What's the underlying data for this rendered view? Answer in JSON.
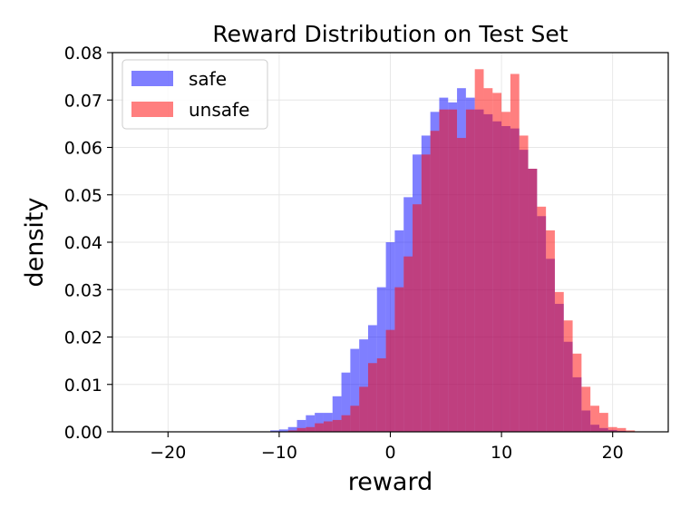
{
  "chart_data": {
    "type": "bar",
    "title": "Reward Distribution on Test Set",
    "xlabel": "reward",
    "ylabel": "density",
    "xlim": [
      -25,
      25
    ],
    "ylim": [
      0,
      0.08
    ],
    "xticks": [
      -20,
      -10,
      0,
      10,
      20
    ],
    "xtick_labels": [
      "−20",
      "−10",
      "0",
      "10",
      "20"
    ],
    "yticks": [
      0.0,
      0.01,
      0.02,
      0.03,
      0.04,
      0.05,
      0.06,
      0.07,
      0.08
    ],
    "ytick_labels": [
      "0.00",
      "0.01",
      "0.02",
      "0.03",
      "0.04",
      "0.05",
      "0.06",
      "0.07",
      "0.08"
    ],
    "grid": true,
    "legend_position": "top-left",
    "bin_width": 0.8,
    "series": [
      {
        "name": "safe",
        "color": "#0000ff",
        "alpha": 0.5,
        "bins": [
          [
            -10.8,
            0.0003
          ],
          [
            -10.0,
            0.0005
          ],
          [
            -9.2,
            0.001
          ],
          [
            -8.4,
            0.0025
          ],
          [
            -7.6,
            0.0035
          ],
          [
            -6.8,
            0.004
          ],
          [
            -6.0,
            0.004
          ],
          [
            -5.2,
            0.0075
          ],
          [
            -4.4,
            0.0125
          ],
          [
            -3.6,
            0.0175
          ],
          [
            -2.8,
            0.0195
          ],
          [
            -2.0,
            0.0225
          ],
          [
            -1.2,
            0.0305
          ],
          [
            -0.4,
            0.04
          ],
          [
            0.4,
            0.0425
          ],
          [
            1.2,
            0.0495
          ],
          [
            2.0,
            0.0585
          ],
          [
            2.8,
            0.0625
          ],
          [
            3.6,
            0.0675
          ],
          [
            4.4,
            0.0705
          ],
          [
            5.2,
            0.0695
          ],
          [
            6.0,
            0.0725
          ],
          [
            6.8,
            0.0705
          ],
          [
            7.6,
            0.068
          ],
          [
            8.4,
            0.067
          ],
          [
            9.2,
            0.0655
          ],
          [
            10.0,
            0.0645
          ],
          [
            10.8,
            0.064
          ],
          [
            11.6,
            0.0595
          ],
          [
            12.4,
            0.0555
          ],
          [
            13.2,
            0.0455
          ],
          [
            14.0,
            0.0365
          ],
          [
            14.8,
            0.027
          ],
          [
            15.6,
            0.019
          ],
          [
            16.4,
            0.0115
          ],
          [
            17.2,
            0.0045
          ],
          [
            18.0,
            0.0015
          ],
          [
            18.8,
            0.0008
          ],
          [
            19.6,
            0.0004
          ],
          [
            20.4,
            0.0002
          ]
        ]
      },
      {
        "name": "unsafe",
        "color": "#ff0000",
        "alpha": 0.5,
        "bins": [
          [
            -9.2,
            0.0003
          ],
          [
            -8.4,
            0.0008
          ],
          [
            -7.6,
            0.001
          ],
          [
            -6.8,
            0.0018
          ],
          [
            -6.0,
            0.0022
          ],
          [
            -5.2,
            0.0025
          ],
          [
            -4.4,
            0.0035
          ],
          [
            -3.6,
            0.0055
          ],
          [
            -2.8,
            0.0095
          ],
          [
            -2.0,
            0.0145
          ],
          [
            -1.2,
            0.0155
          ],
          [
            -0.4,
            0.0215
          ],
          [
            0.4,
            0.0305
          ],
          [
            1.2,
            0.037
          ],
          [
            2.0,
            0.048
          ],
          [
            2.8,
            0.0585
          ],
          [
            3.6,
            0.0635
          ],
          [
            4.4,
            0.068
          ],
          [
            5.2,
            0.068
          ],
          [
            6.0,
            0.062
          ],
          [
            6.8,
            0.068
          ],
          [
            7.6,
            0.0765
          ],
          [
            8.4,
            0.0725
          ],
          [
            9.2,
            0.0715
          ],
          [
            10.0,
            0.0675
          ],
          [
            10.8,
            0.0755
          ],
          [
            11.6,
            0.0625
          ],
          [
            12.4,
            0.0555
          ],
          [
            13.2,
            0.0475
          ],
          [
            14.0,
            0.0425
          ],
          [
            14.8,
            0.0295
          ],
          [
            15.6,
            0.0235
          ],
          [
            16.4,
            0.0165
          ],
          [
            17.2,
            0.0095
          ],
          [
            18.0,
            0.0055
          ],
          [
            18.8,
            0.004
          ],
          [
            19.6,
            0.001
          ],
          [
            20.4,
            0.0008
          ],
          [
            21.2,
            0.0003
          ]
        ]
      }
    ]
  }
}
